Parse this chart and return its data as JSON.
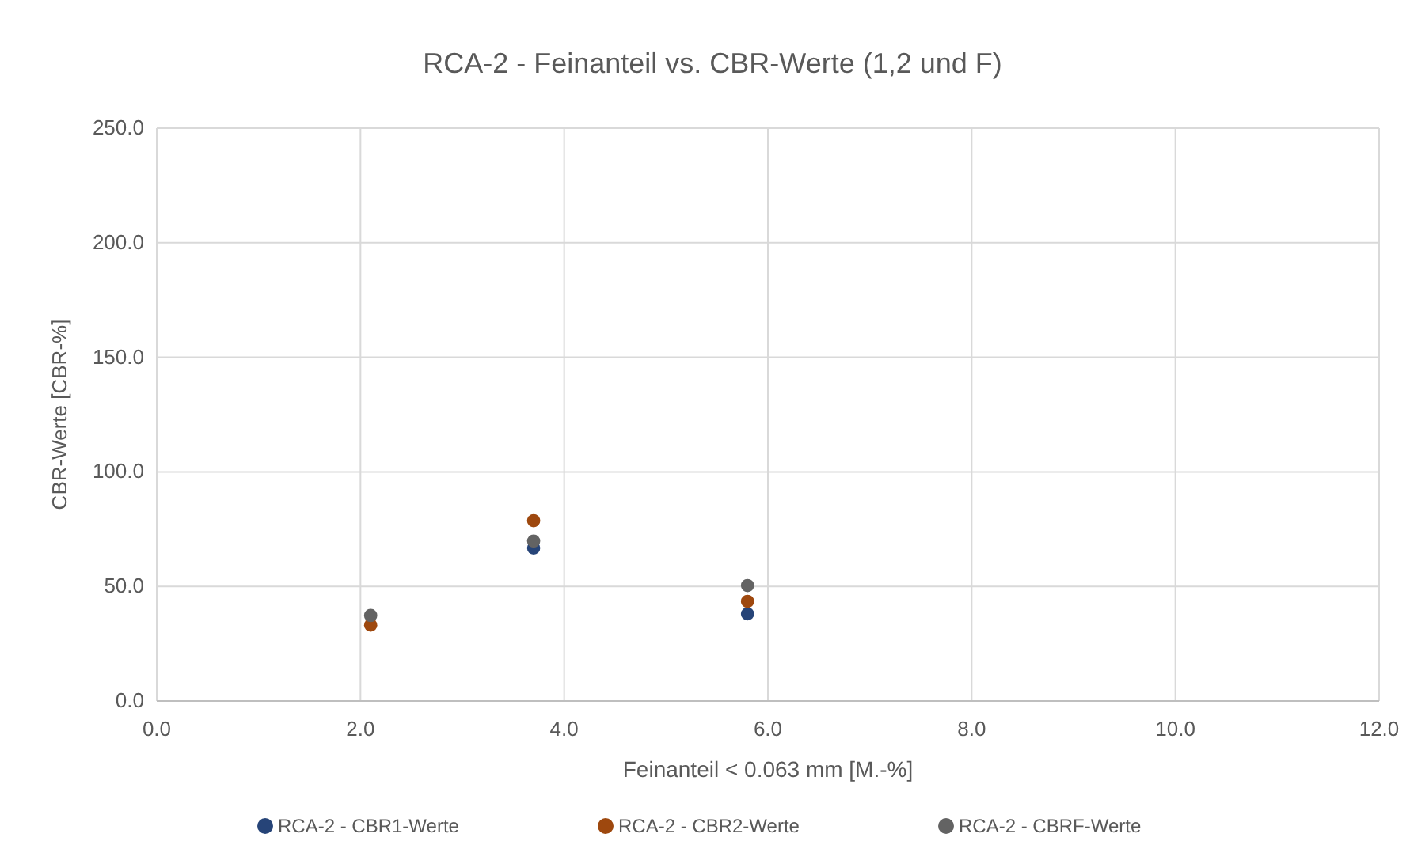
{
  "chart_data": {
    "type": "scatter",
    "title": "RCA-2 - Feinanteil vs. CBR-Werte (1,2 und F)",
    "xlabel": "Feinanteil < 0.063 mm [M.-%]",
    "ylabel": "CBR-Werte [CBR-%]",
    "x": [
      2.1,
      3.7,
      5.8
    ],
    "series": [
      {
        "name": "RCA-2 - CBR1-Werte",
        "color": "#264478",
        "values": [
          null,
          66.8,
          38.0
        ]
      },
      {
        "name": "RCA-2 - CBR2-Werte",
        "color": "#9e480e",
        "values": [
          33.1,
          78.7,
          43.5
        ]
      },
      {
        "name": "RCA-2 - CBRF-Werte",
        "color": "#636363",
        "values": [
          37.3,
          69.8,
          50.4
        ]
      }
    ],
    "xlim": [
      0,
      12
    ],
    "xticks": [
      {
        "value": 0,
        "label": "0.0"
      },
      {
        "value": 2,
        "label": "2.0"
      },
      {
        "value": 4,
        "label": "4.0"
      },
      {
        "value": 6,
        "label": "6.0"
      },
      {
        "value": 8,
        "label": "8.0"
      },
      {
        "value": 10,
        "label": "10.0"
      },
      {
        "value": 12,
        "label": "12.0"
      }
    ],
    "ylim": [
      0,
      250
    ],
    "yticks": [
      {
        "value": 0,
        "label": "0.0"
      },
      {
        "value": 50,
        "label": "50.0"
      },
      {
        "value": 100,
        "label": "100.0"
      },
      {
        "value": 150,
        "label": "150.0"
      },
      {
        "value": 200,
        "label": "200.0"
      },
      {
        "value": 250,
        "label": "250.0"
      }
    ],
    "grid": true,
    "legend": "bottom",
    "marker": "circle"
  }
}
